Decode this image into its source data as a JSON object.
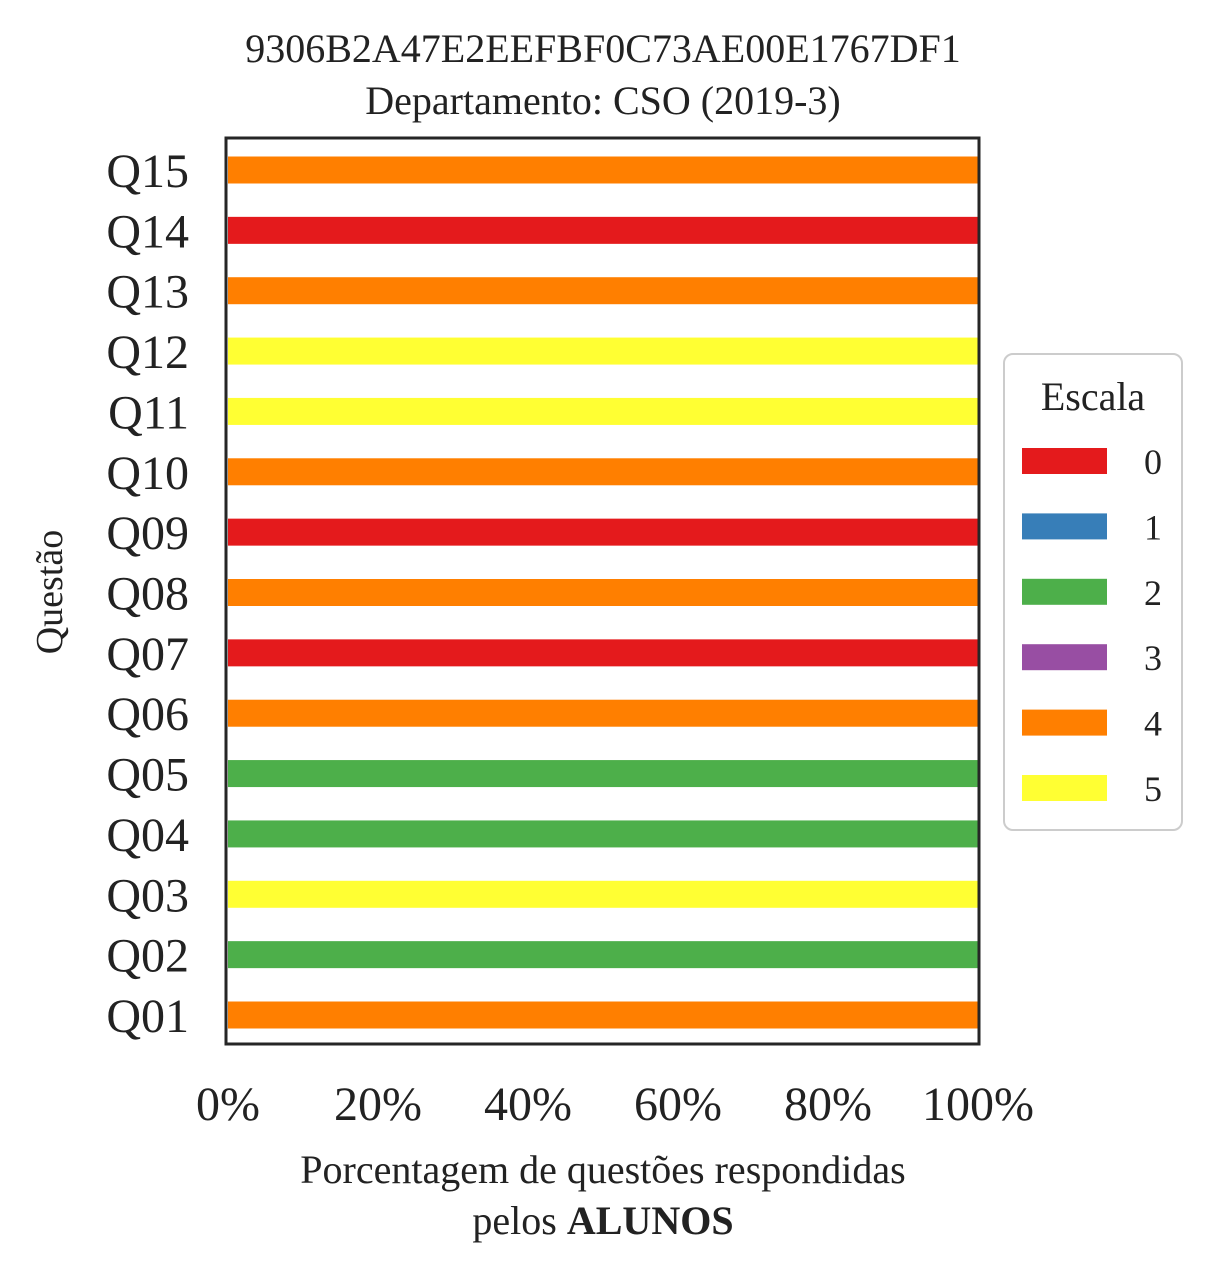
{
  "chart_data": {
    "type": "bar",
    "orientation": "horizontal",
    "stacked": true,
    "title": "9306B2A47E2EEFBF0C73AE00E1767DF1",
    "subtitle": "Departamento: CSO (2019-3)",
    "xlabel_line1": "Porcentagem de questões respondidas",
    "xlabel_line2_prefix": "pelos ",
    "xlabel_line2_bold": "ALUNOS",
    "ylabel": "Questão",
    "xlim": [
      0,
      100
    ],
    "xticks": [
      0,
      20,
      40,
      60,
      80,
      100
    ],
    "xtick_labels": [
      "0%",
      "20%",
      "40%",
      "60%",
      "80%",
      "100%"
    ],
    "grid": false,
    "categories": [
      "Q01",
      "Q02",
      "Q03",
      "Q04",
      "Q05",
      "Q06",
      "Q07",
      "Q08",
      "Q09",
      "Q10",
      "Q11",
      "Q12",
      "Q13",
      "Q14",
      "Q15"
    ],
    "series": [
      {
        "name": "0",
        "color": "#e41a1c",
        "values": [
          0,
          0,
          0,
          0,
          0,
          0,
          100,
          0,
          100,
          0,
          0,
          0,
          0,
          100,
          0
        ]
      },
      {
        "name": "1",
        "color": "#377eb8",
        "values": [
          0,
          0,
          0,
          0,
          0,
          0,
          0,
          0,
          0,
          0,
          0,
          0,
          0,
          0,
          0
        ]
      },
      {
        "name": "2",
        "color": "#4daf4a",
        "values": [
          0,
          100,
          0,
          100,
          100,
          0,
          0,
          0,
          0,
          0,
          0,
          0,
          0,
          0,
          0
        ]
      },
      {
        "name": "3",
        "color": "#984ea3",
        "values": [
          0,
          0,
          0,
          0,
          0,
          0,
          0,
          0,
          0,
          0,
          0,
          0,
          0,
          0,
          0
        ]
      },
      {
        "name": "4",
        "color": "#ff7f00",
        "values": [
          100,
          0,
          0,
          0,
          0,
          100,
          0,
          100,
          0,
          100,
          0,
          0,
          100,
          0,
          100
        ]
      },
      {
        "name": "5",
        "color": "#ffff33",
        "values": [
          0,
          0,
          100,
          0,
          0,
          0,
          0,
          0,
          0,
          0,
          100,
          100,
          0,
          0,
          0
        ]
      }
    ],
    "legend": {
      "title": "Escala",
      "placement": "center-right"
    }
  }
}
